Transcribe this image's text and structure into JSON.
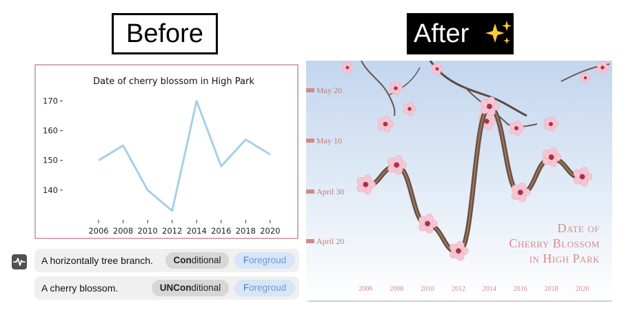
{
  "headers": {
    "before": "Before",
    "after": "After",
    "after_icon": "sparkles-icon"
  },
  "chart_data": [
    {
      "type": "line",
      "title": "Date of cherry blossom in High Park",
      "xlabel": "",
      "ylabel": "",
      "x": [
        2006,
        2008,
        2010,
        2012,
        2014,
        2016,
        2018,
        2020
      ],
      "series": [
        {
          "values": [
            150,
            155,
            140,
            133,
            170,
            148,
            157,
            152
          ]
        }
      ],
      "xticks": [
        "2006",
        "2008",
        "2010",
        "2012",
        "2014",
        "2016",
        "2018",
        "2020"
      ],
      "yticks": [
        "140",
        "150",
        "160",
        "170"
      ],
      "xlim": [
        2003.3,
        2021.3
      ],
      "ylim": [
        129.5,
        175
      ],
      "line_color": "#a8cfe6",
      "frame_color": "#d2a9bf",
      "grid": false
    },
    {
      "type": "line",
      "title": "Date of Cherry Blossom in High Park",
      "title_lines": [
        "Date of",
        "Cherry Blossom",
        "in High Park"
      ],
      "x": [
        2006,
        2008,
        2010,
        2012,
        2014,
        2016,
        2018,
        2020
      ],
      "series": [
        {
          "values": [
            150,
            155,
            140,
            133,
            170,
            148,
            157,
            152
          ]
        }
      ],
      "xticks": [
        "2006",
        "2008",
        "2010",
        "2012",
        "2014",
        "2016",
        "2018",
        "2020"
      ],
      "yticks": [
        "April 20",
        "May 10",
        "April 30",
        "May 20"
      ],
      "style": "tree branch with cherry blossoms",
      "tick_color": "#d08a8a",
      "sky_colors": [
        "#c9daf0",
        "#ffffff"
      ]
    }
  ],
  "prompts": [
    {
      "text": "A horizontally tree branch.",
      "condition_bold": "Con",
      "condition_rest": "ditional",
      "layer_first": "F",
      "layer_rest": "oregroud"
    },
    {
      "text": "A cherry blossom.",
      "condition_bold": "UNCon",
      "condition_rest": "ditional",
      "layer_first": "F",
      "layer_rest": "oregroud"
    }
  ],
  "side_icon": "waveform-icon"
}
